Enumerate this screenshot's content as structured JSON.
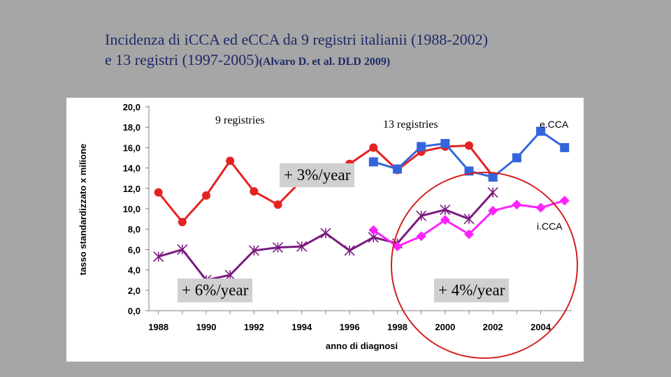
{
  "slide": {
    "title_line1": "Incidenza di iCCA ed  eCCA da 9 registri italianii (1988-2002)",
    "title_line2_main": "e 13 registri (1997-2005)",
    "title_line2_ref": "(Alvaro D. et al. DLD 2009)"
  },
  "chart_data": {
    "type": "line",
    "xlabel": "anno di diagnosi",
    "ylabel": "tasso standardizzato x milione",
    "ylim": [
      0,
      20
    ],
    "xlim": [
      1988,
      2005
    ],
    "yticks": [
      "0,0",
      "2,0",
      "4,0",
      "6,0",
      "8,0",
      "10,0",
      "12,0",
      "14,0",
      "16,0",
      "18,0",
      "20,0"
    ],
    "xticks": [
      "1988",
      "1990",
      "1992",
      "1994",
      "1996",
      "1998",
      "2000",
      "2002",
      "2004"
    ],
    "grid": false,
    "series": [
      {
        "name": "",
        "color": "#e52222",
        "marker": "circle",
        "x": [
          1988,
          1989,
          1990,
          1991,
          1992,
          1993,
          1994,
          1995,
          1996,
          1997,
          1998,
          1999,
          2000,
          2001,
          2002
        ],
        "y": [
          11.6,
          8.7,
          11.3,
          14.7,
          11.7,
          10.4,
          12.8,
          13.6,
          14.4,
          16.0,
          13.8,
          15.6,
          16.1,
          16.2,
          13.2
        ]
      },
      {
        "name": "",
        "color": "#3366dd",
        "marker": "square",
        "x": [
          1997,
          1998,
          1999,
          2000,
          2001,
          2002,
          2003,
          2004,
          2005
        ],
        "y": [
          14.6,
          13.9,
          16.1,
          16.4,
          13.7,
          13.1,
          15.0,
          17.6,
          16.0
        ]
      },
      {
        "name": "",
        "color": "#7a1a80",
        "marker": "asterisk",
        "x": [
          1988,
          1989,
          1990,
          1991,
          1992,
          1993,
          1994,
          1995,
          1996,
          1997,
          1998,
          1999,
          2000,
          2001,
          2002
        ],
        "y": [
          5.3,
          6.0,
          3.0,
          3.5,
          5.9,
          6.2,
          6.3,
          7.6,
          5.9,
          7.2,
          6.6,
          9.3,
          9.9,
          9.0,
          11.6
        ]
      },
      {
        "name": "",
        "color": "#ff22ff",
        "marker": "diamond",
        "x": [
          1997,
          1998,
          1999,
          2000,
          2001,
          2002,
          2003,
          2004,
          2005
        ],
        "y": [
          7.9,
          6.3,
          7.3,
          8.9,
          7.5,
          9.8,
          10.4,
          10.1,
          10.8
        ]
      }
    ],
    "annotations": {
      "registries9": "9 registries",
      "registries13": "13 registries",
      "ecca": "e.CCA",
      "icca": "i.CCA",
      "trend_ecca": "+ 3%/year",
      "trend_icca_early": "+ 6%/year",
      "trend_icca_late": "+ 4%/year"
    }
  },
  "colors": {
    "background": "#a6a6a6",
    "title": "#1f2a66",
    "annotation_box": "#d0d0d0",
    "highlight_circle": "#d42020"
  }
}
